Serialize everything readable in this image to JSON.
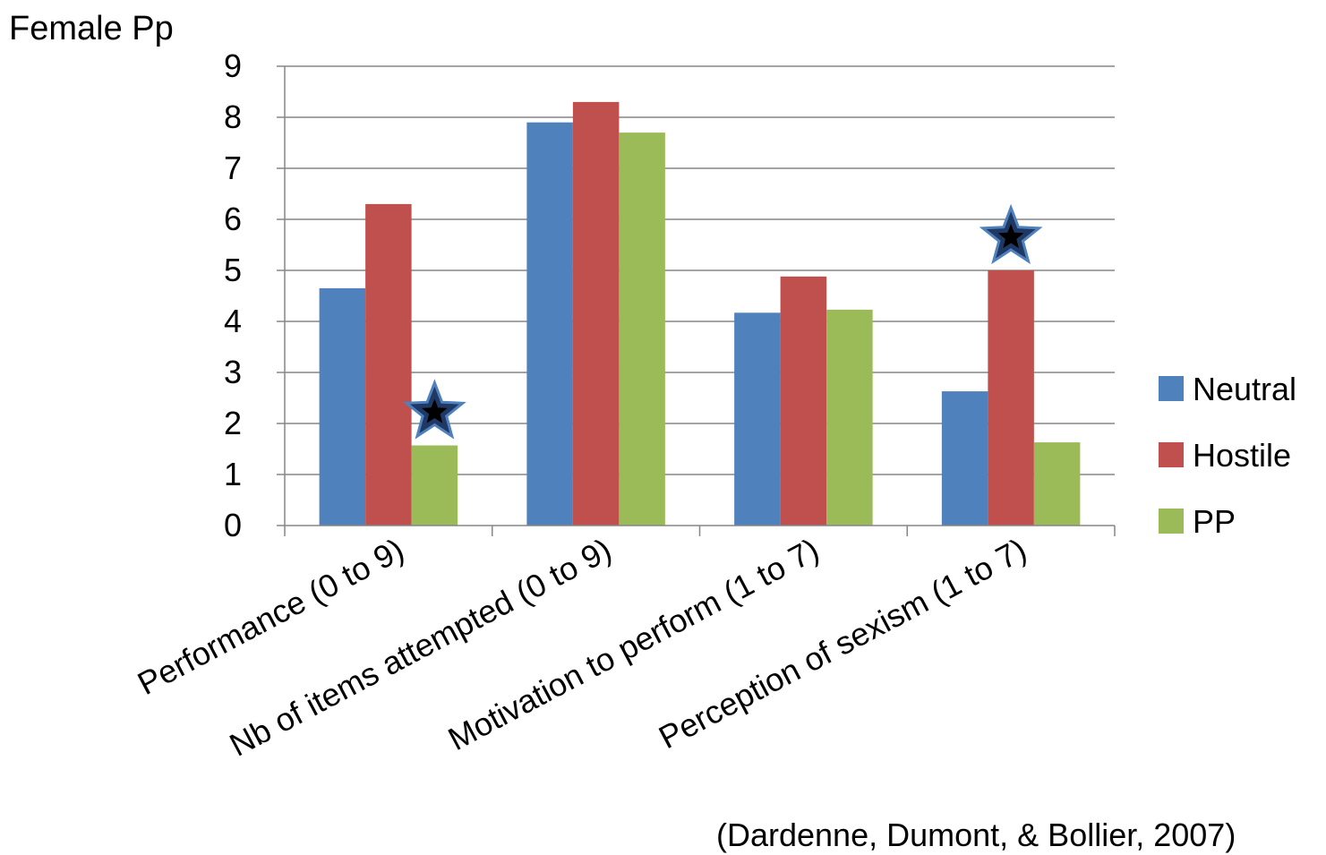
{
  "chart_data": {
    "type": "bar",
    "title": "Female Pp",
    "categories": [
      "Performance (0 to 9)",
      "Nb of items attempted (0 to 9)",
      "Motivation to perform (1 to 7)",
      "Perception of sexism (1 to 7)"
    ],
    "series": [
      {
        "name": "Neutral",
        "color": "#4F81BD",
        "values": [
          4.65,
          7.9,
          4.17,
          2.63
        ]
      },
      {
        "name": "Hostile",
        "color": "#C0504D",
        "values": [
          6.3,
          8.3,
          4.88,
          5.0
        ]
      },
      {
        "name": "PP",
        "color": "#9BBB59",
        "values": [
          1.57,
          7.7,
          4.23,
          1.63
        ]
      }
    ],
    "yticks": [
      "0",
      "1",
      "2",
      "3",
      "4",
      "5",
      "6",
      "7",
      "8",
      "9"
    ],
    "ylim": [
      0,
      9
    ],
    "xlabel": "",
    "ylabel": "",
    "grid": true,
    "legend_position": "right",
    "significance_markers": [
      {
        "category_index": 0,
        "series_index": 2,
        "marker": "star"
      },
      {
        "category_index": 3,
        "series_index": 1,
        "marker": "star"
      }
    ],
    "citation": "(Dardenne, Dumont, & Bollier, 2007)"
  }
}
